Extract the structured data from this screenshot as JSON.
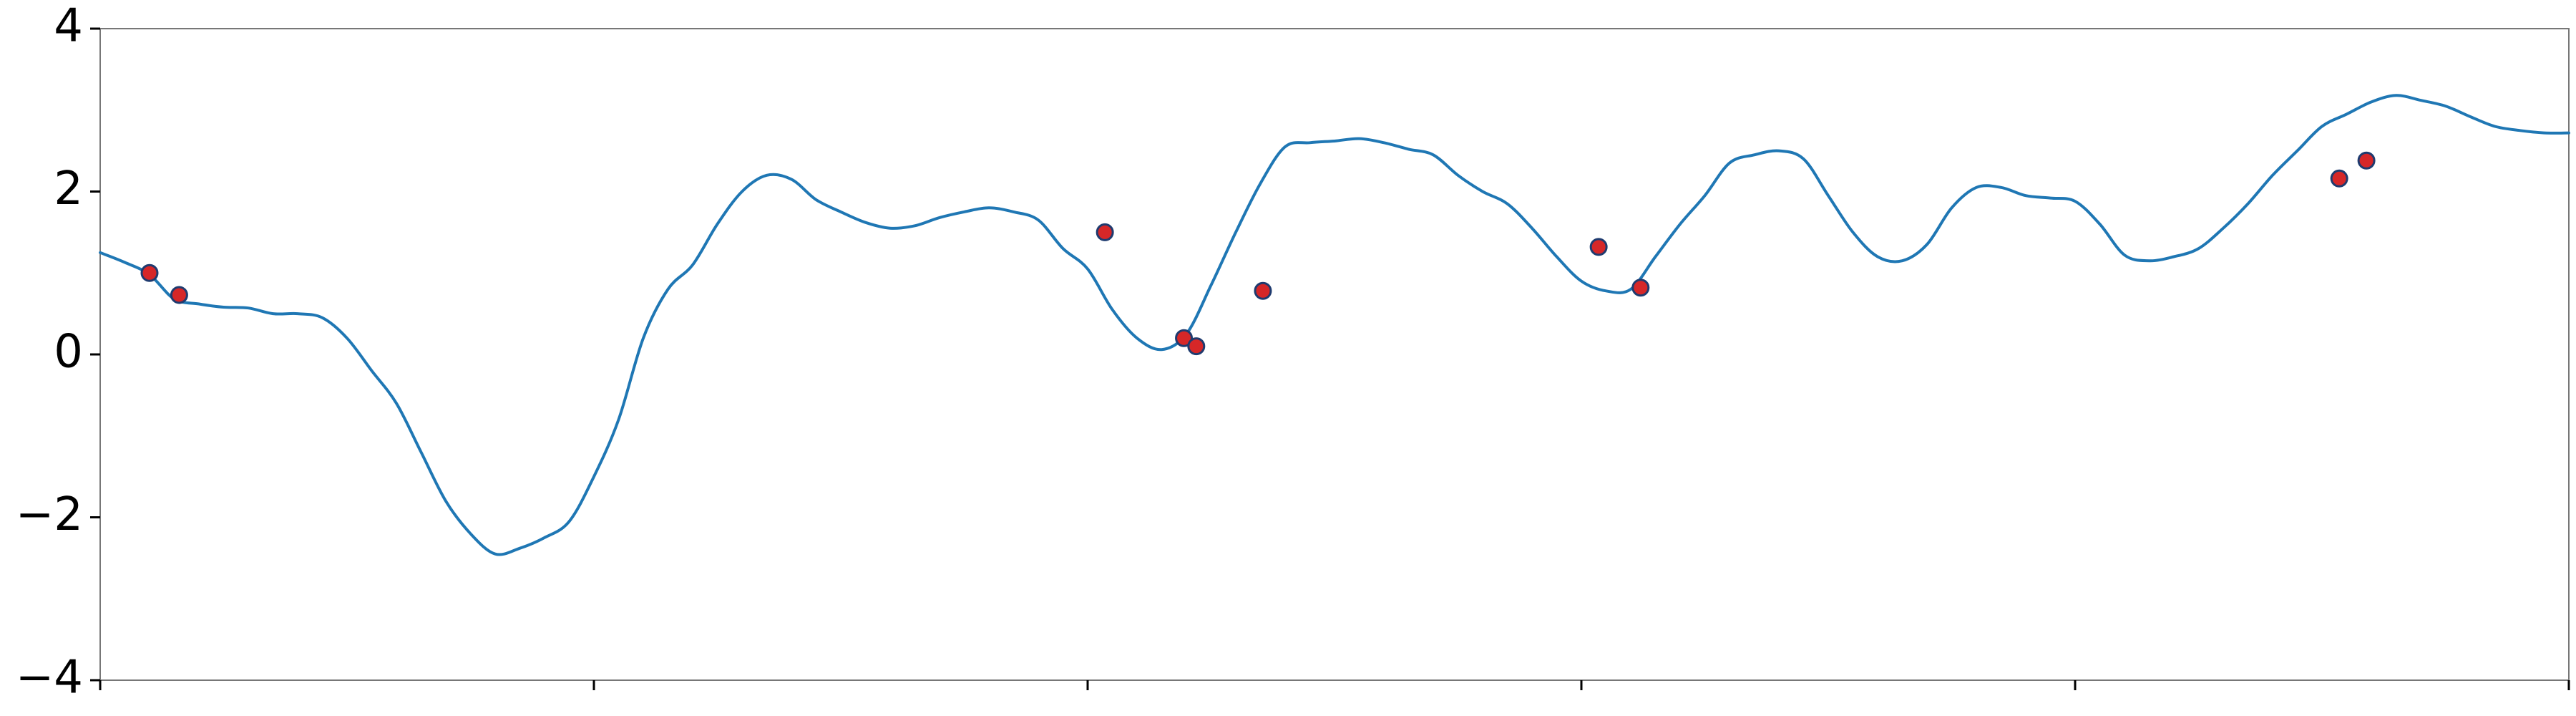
{
  "chart_data": {
    "type": "line",
    "title": "",
    "xlabel": "",
    "ylabel": "",
    "xlim": [
      0,
      1
    ],
    "ylim": [
      -4,
      4
    ],
    "grid": false,
    "yticks": [
      -4,
      -2,
      0,
      2,
      4
    ],
    "ytick_labels": [
      "−4",
      "−2",
      "0",
      "2",
      "4"
    ],
    "xticks": [
      0,
      0.2,
      0.4,
      0.6,
      0.8,
      1.0
    ],
    "xtick_labels": [
      "",
      "",
      "",
      "",
      "",
      ""
    ],
    "colors": {
      "line": "#1f77b4",
      "marker_fill": "#d62728",
      "marker_edge": "#1f3b6f",
      "axis": "#000000"
    },
    "series": [
      {
        "kind": "line",
        "x": [
          0.0,
          0.01,
          0.02,
          0.03,
          0.04,
          0.05,
          0.06,
          0.07,
          0.08,
          0.09,
          0.1,
          0.11,
          0.12,
          0.13,
          0.14,
          0.15,
          0.16,
          0.17,
          0.18,
          0.19,
          0.2,
          0.21,
          0.22,
          0.23,
          0.24,
          0.25,
          0.26,
          0.27,
          0.28,
          0.29,
          0.3,
          0.31,
          0.32,
          0.33,
          0.34,
          0.35,
          0.36,
          0.37,
          0.38,
          0.39,
          0.4,
          0.41,
          0.42,
          0.43,
          0.44,
          0.45,
          0.46,
          0.47,
          0.48,
          0.49,
          0.5,
          0.51,
          0.52,
          0.53,
          0.54,
          0.55,
          0.56,
          0.57,
          0.58,
          0.59,
          0.6,
          0.61,
          0.62,
          0.63,
          0.64,
          0.65,
          0.66,
          0.67,
          0.68,
          0.69,
          0.7,
          0.71,
          0.72,
          0.73,
          0.74,
          0.75,
          0.76,
          0.77,
          0.78,
          0.79,
          0.8,
          0.81,
          0.82,
          0.83,
          0.84,
          0.85,
          0.86,
          0.87,
          0.88,
          0.89,
          0.9,
          0.91,
          0.92,
          0.93,
          0.94,
          0.95,
          0.96,
          0.97,
          0.98,
          0.99,
          1.0
        ],
        "y": [
          1.25,
          1.13,
          0.98,
          0.68,
          0.62,
          0.58,
          0.57,
          0.5,
          0.5,
          0.45,
          0.2,
          -0.2,
          -0.6,
          -1.2,
          -1.8,
          -2.2,
          -2.45,
          -2.38,
          -2.25,
          -2.05,
          -1.5,
          -0.8,
          0.2,
          0.8,
          1.1,
          1.6,
          2.0,
          2.2,
          2.15,
          1.9,
          1.75,
          1.62,
          1.55,
          1.58,
          1.68,
          1.75,
          1.8,
          1.75,
          1.65,
          1.3,
          1.05,
          0.55,
          0.2,
          0.06,
          0.25,
          0.85,
          1.5,
          2.1,
          2.55,
          2.6,
          2.62,
          2.65,
          2.6,
          2.52,
          2.45,
          2.2,
          2.0,
          1.85,
          1.55,
          1.2,
          0.9,
          0.78,
          0.8,
          1.2,
          1.6,
          1.95,
          2.35,
          2.45,
          2.5,
          2.4,
          1.95,
          1.5,
          1.2,
          1.15,
          1.35,
          1.8,
          2.05,
          2.05,
          1.95,
          1.92,
          1.88,
          1.6,
          1.22,
          1.15,
          1.2,
          1.3,
          1.55,
          1.85,
          2.2,
          2.5,
          2.8,
          2.95,
          3.1,
          3.18,
          3.12,
          3.05,
          2.92,
          2.8,
          2.75,
          2.72,
          2.72
        ]
      },
      {
        "kind": "scatter",
        "x": [
          0.02,
          0.032,
          0.407,
          0.439,
          0.444,
          0.471,
          0.607,
          0.624,
          0.907,
          0.918
        ],
        "y": [
          1.0,
          0.73,
          1.5,
          0.2,
          0.1,
          0.78,
          1.32,
          0.82,
          2.16,
          2.38
        ]
      }
    ]
  }
}
